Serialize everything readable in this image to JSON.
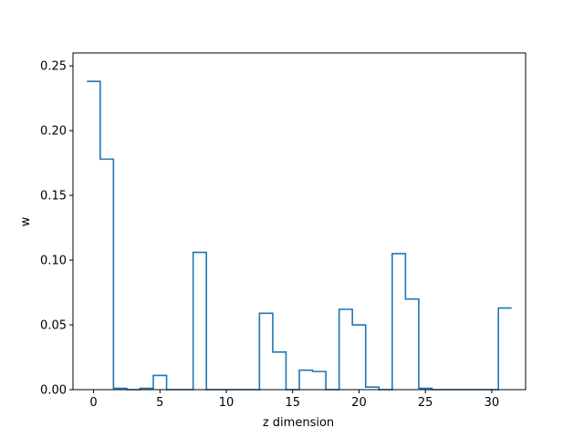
{
  "chart_data": {
    "type": "line",
    "style": "step",
    "title": "",
    "xlabel": "z dimension",
    "ylabel": "w",
    "xlim": [
      -1.55,
      32.55
    ],
    "ylim": [
      0,
      0.26
    ],
    "xticks": [
      0,
      5,
      10,
      15,
      20,
      25,
      30
    ],
    "xtick_labels": [
      "0",
      "5",
      "10",
      "15",
      "20",
      "25",
      "30"
    ],
    "yticks": [
      0.0,
      0.05,
      0.1,
      0.15,
      0.2,
      0.25
    ],
    "ytick_labels": [
      "0.00",
      "0.05",
      "0.10",
      "0.15",
      "0.20",
      "0.25"
    ],
    "grid": false,
    "color": "#1f77b4",
    "x": [
      0,
      1,
      2,
      3,
      4,
      5,
      6,
      7,
      8,
      9,
      10,
      11,
      12,
      13,
      14,
      15,
      16,
      17,
      18,
      19,
      20,
      21,
      22,
      23,
      24,
      25,
      26,
      27,
      28,
      29,
      30,
      31
    ],
    "values": [
      0.238,
      0.178,
      0.001,
      0.0,
      0.001,
      0.011,
      0.0,
      0.0,
      0.106,
      0.0,
      0.0,
      0.0,
      0.0,
      0.059,
      0.029,
      0.0,
      0.015,
      0.014,
      0.0,
      0.062,
      0.05,
      0.002,
      0.0,
      0.105,
      0.07,
      0.001,
      0.0,
      0.0,
      0.0,
      0.0,
      0.0,
      0.063
    ]
  }
}
